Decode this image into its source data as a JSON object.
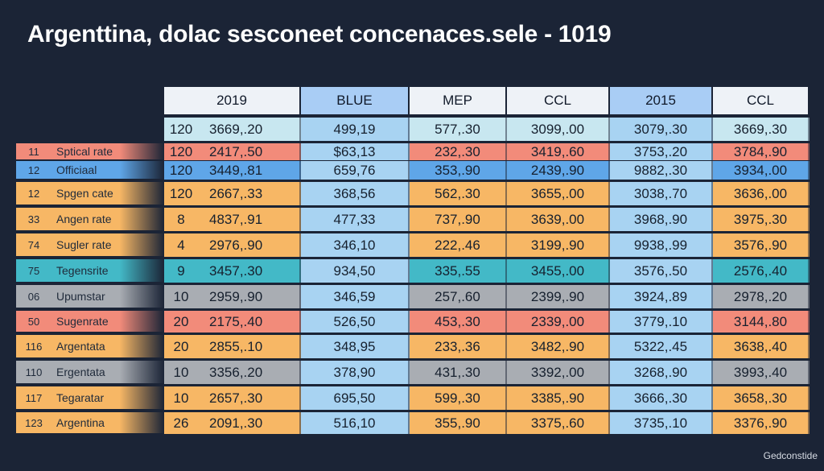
{
  "title": "Argenttina, dolac sesconeet concenaces.sele - 1019",
  "footer": "Gedconstide",
  "colors": {
    "background": "#1b2436",
    "header_default": "#eef2f7",
    "header_blue": "#a9cdf5",
    "red": "#f28b7a",
    "orange": "#f7b765",
    "blue": "#5fa6e8",
    "teal": "#43b9c7",
    "grey": "#a9adb3",
    "light_blue": "#a8d3f2",
    "pale": "#c8e7f0"
  },
  "chart_data": {
    "type": "table",
    "title": "Argenttina, dolac sesconeet concenaces.sele - 1019",
    "columns": [
      "2019",
      "BLUE",
      "MEP",
      "CCL",
      "2015",
      "CCL"
    ],
    "top_row": {
      "count": "120",
      "values": [
        "3669,.20",
        "499,19",
        "577,.30",
        "3099,.00",
        "3079,.30",
        "3669,.30"
      ]
    },
    "rows": [
      {
        "id": "11",
        "label": "Sptical rate",
        "count": "120",
        "values": [
          "2417,.50",
          "$63,13",
          "232,.30",
          "3419,.60",
          "3753,.20",
          "3784,.90"
        ],
        "color": "red"
      },
      {
        "id": "12",
        "label": "Officiaal",
        "count": "120",
        "values": [
          "3449,.81",
          "659,76",
          "353,.90",
          "2439,.90",
          "9882,.30",
          "3934,.00"
        ],
        "color": "blue"
      },
      {
        "id": "12",
        "label": "Spgen cate",
        "count": "120",
        "values": [
          "2667,.33",
          "368,56",
          "562,.30",
          "3655,.00",
          "3038,.70",
          "3636,.00"
        ],
        "color": "orange"
      },
      {
        "id": "33",
        "label": "Angen rate",
        "count": "8",
        "values": [
          "4837,.91",
          "477,33",
          "737,.90",
          "3639,.00",
          "3968,.90",
          "3975,.30"
        ],
        "color": "orange"
      },
      {
        "id": "74",
        "label": "Sugler rate",
        "count": "4",
        "values": [
          "2976,.90",
          "346,10",
          "222,.46",
          "3199,.90",
          "9938,.99",
          "3576,.90"
        ],
        "color": "orange"
      },
      {
        "id": "75",
        "label": "Tegensrite",
        "count": "9",
        "values": [
          "3457,.30",
          "934,50",
          "335,.55",
          "3455,.00",
          "3576,.50",
          "2576,.40"
        ],
        "color": "teal"
      },
      {
        "id": "06",
        "label": "Upumstar",
        "count": "10",
        "values": [
          "2959,.90",
          "346,59",
          "257,.60",
          "2399,.90",
          "3924,.89",
          "2978,.20"
        ],
        "color": "grey"
      },
      {
        "id": "50",
        "label": "Sugenrate",
        "count": "20",
        "values": [
          "2175,.40",
          "526,50",
          "453,.30",
          "2339,.00",
          "3779,.10",
          "3144,.80"
        ],
        "color": "red"
      },
      {
        "id": "116",
        "label": "Argentata",
        "count": "20",
        "values": [
          "2855,.10",
          "348,95",
          "233,.36",
          "3482,.90",
          "5322,.45",
          "3638,.40"
        ],
        "color": "orange"
      },
      {
        "id": "110",
        "label": "Ergentata",
        "count": "10",
        "values": [
          "3356,.20",
          "378,90",
          "431,.30",
          "3392,.00",
          "3268,.90",
          "3993,.40"
        ],
        "color": "grey"
      },
      {
        "id": "117",
        "label": "Tegaratar",
        "count": "10",
        "values": [
          "2657,.30",
          "695,50",
          "599,.30",
          "3385,.90",
          "3666,.30",
          "3658,.30"
        ],
        "color": "orange"
      },
      {
        "id": "123",
        "label": "Argentina",
        "count": "26",
        "values": [
          "2091,.30",
          "516,10",
          "355,.90",
          "3375,.60",
          "3735,.10",
          "3376,.90"
        ],
        "color": "orange"
      }
    ]
  }
}
